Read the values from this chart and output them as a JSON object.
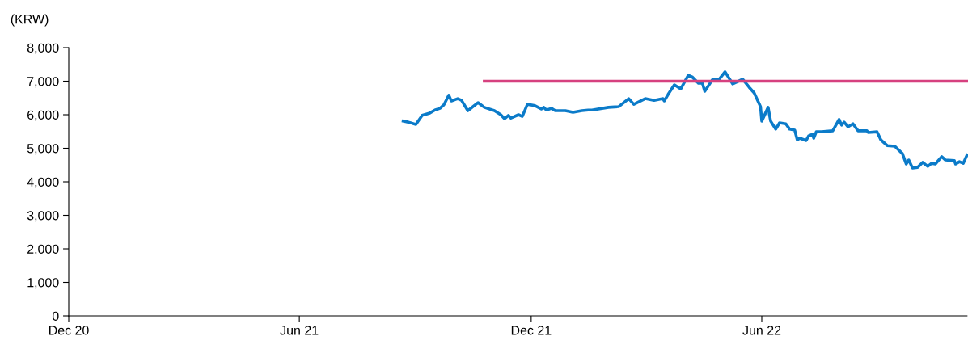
{
  "chart_data": {
    "type": "line",
    "ylabel": "(KRW)",
    "xlim": [
      "2020-12-01",
      "2022-11-10"
    ],
    "ylim": [
      0,
      8000
    ],
    "xticks": [
      {
        "value": "2020-12-01",
        "label": "Dec 20"
      },
      {
        "value": "2021-06-01",
        "label": "Jun 21"
      },
      {
        "value": "2021-12-01",
        "label": "Dec 21"
      },
      {
        "value": "2022-06-01",
        "label": "Jun 22"
      }
    ],
    "yticks": [
      0,
      {
        "value": 1000,
        "label": "1,000"
      },
      {
        "value": 2000,
        "label": "2,000"
      },
      {
        "value": 3000,
        "label": "3,000"
      },
      {
        "value": 4000,
        "label": "4,000"
      },
      {
        "value": 5000,
        "label": "5,000"
      },
      {
        "value": 6000,
        "label": "6,000"
      },
      {
        "value": 7000,
        "label": "7,000"
      },
      {
        "value": 8000,
        "label": "8,000"
      }
    ],
    "grid": false,
    "marker": "none",
    "line_style": "solid",
    "series": [
      {
        "color": "#0b7bc9",
        "x": [
          "2021-08-22",
          "2021-08-26",
          "2021-09-01",
          "2021-09-06",
          "2021-09-12",
          "2021-09-16",
          "2021-09-20",
          "2021-09-23",
          "2021-09-27",
          "2021-09-29",
          "2021-10-04",
          "2021-10-07",
          "2021-10-12",
          "2021-10-20",
          "2021-10-25",
          "2021-11-02",
          "2021-11-07",
          "2021-11-10",
          "2021-11-13",
          "2021-11-15",
          "2021-11-21",
          "2021-11-24",
          "2021-11-28",
          "2021-12-04",
          "2021-12-09",
          "2021-12-11",
          "2021-12-13",
          "2021-12-17",
          "2021-12-20",
          "2021-12-28",
          "2022-01-03",
          "2022-01-10",
          "2022-01-15",
          "2022-01-18",
          "2022-01-31",
          "2022-02-08",
          "2022-02-16",
          "2022-02-20",
          "2022-03-01",
          "2022-03-08",
          "2022-03-15",
          "2022-03-16",
          "2022-03-19",
          "2022-03-24",
          "2022-03-29",
          "2022-04-04",
          "2022-04-07",
          "2022-04-12",
          "2022-04-15",
          "2022-04-17",
          "2022-04-23",
          "2022-04-28",
          "2022-05-03",
          "2022-05-09",
          "2022-05-17",
          "2022-05-22",
          "2022-05-26",
          "2022-05-31",
          "2022-06-01",
          "2022-06-06",
          "2022-06-08",
          "2022-06-12",
          "2022-06-15",
          "2022-06-20",
          "2022-06-23",
          "2022-06-27",
          "2022-06-29",
          "2022-07-01",
          "2022-07-06",
          "2022-07-08",
          "2022-07-11",
          "2022-07-12",
          "2022-07-14",
          "2022-07-18",
          "2022-07-27",
          "2022-08-01",
          "2022-08-03",
          "2022-08-05",
          "2022-08-08",
          "2022-08-12",
          "2022-08-16",
          "2022-08-23",
          "2022-08-24",
          "2022-08-31",
          "2022-09-03",
          "2022-09-08",
          "2022-09-14",
          "2022-09-20",
          "2022-09-23",
          "2022-09-25",
          "2022-09-28",
          "2022-10-02",
          "2022-10-06",
          "2022-10-10",
          "2022-10-13",
          "2022-10-16",
          "2022-10-21",
          "2022-10-24",
          "2022-10-31",
          "2022-11-01",
          "2022-11-04",
          "2022-11-07",
          "2022-11-10"
        ],
        "values": [
          5810,
          5780,
          5710,
          5980,
          6050,
          6140,
          6190,
          6290,
          6580,
          6410,
          6480,
          6430,
          6120,
          6360,
          6220,
          6120,
          6000,
          5880,
          5980,
          5900,
          6000,
          5950,
          6310,
          6270,
          6170,
          6220,
          6140,
          6190,
          6120,
          6120,
          6070,
          6120,
          6140,
          6140,
          6220,
          6240,
          6480,
          6310,
          6480,
          6430,
          6480,
          6410,
          6600,
          6890,
          6770,
          7180,
          7130,
          6940,
          6960,
          6700,
          7040,
          7040,
          7280,
          6920,
          7060,
          6820,
          6650,
          6240,
          5810,
          6220,
          5810,
          5570,
          5760,
          5730,
          5570,
          5540,
          5250,
          5300,
          5230,
          5370,
          5420,
          5300,
          5490,
          5490,
          5520,
          5860,
          5690,
          5780,
          5640,
          5730,
          5520,
          5520,
          5470,
          5490,
          5250,
          5080,
          5060,
          4840,
          4530,
          4650,
          4410,
          4430,
          4580,
          4460,
          4550,
          4530,
          4750,
          4650,
          4630,
          4530,
          4600,
          4550,
          4800
        ]
      },
      {
        "color": "#d6417f",
        "x": [
          "2021-10-25",
          "2022-11-10"
        ],
        "values": [
          7000,
          7000
        ]
      }
    ]
  }
}
